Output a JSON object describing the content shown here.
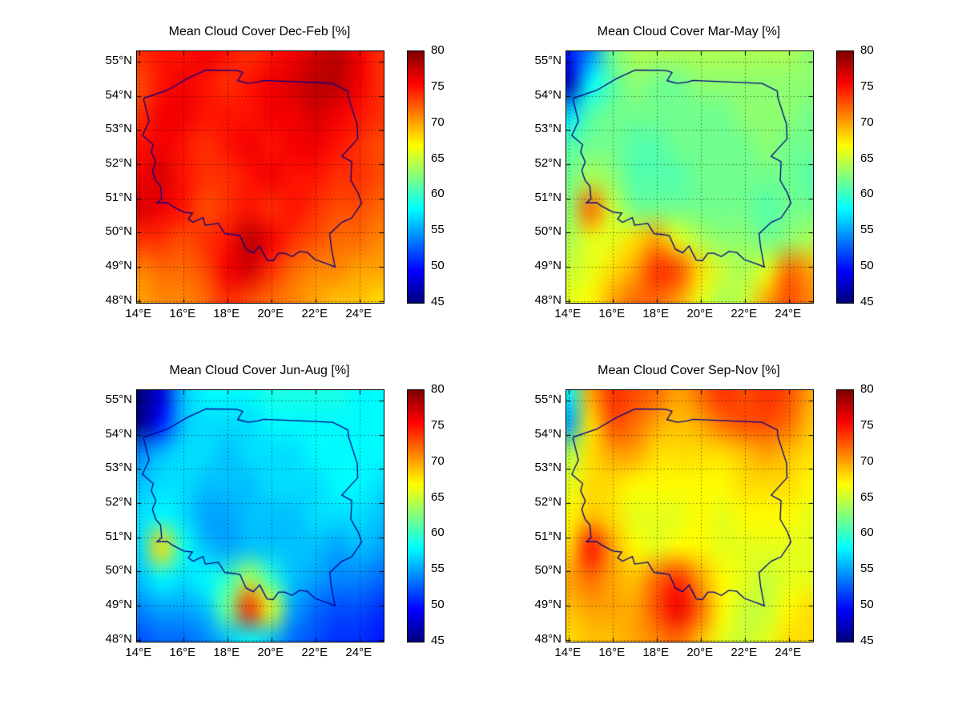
{
  "figure": {
    "background": "#ffffff",
    "description": "Seasonal mean cloud cover maps over Poland, four panels with jet colorbars"
  },
  "axes": {
    "lon_range": [
      13.9,
      25.1
    ],
    "lat_range": [
      47.95,
      55.3
    ],
    "lon_ticks": [
      14,
      16,
      18,
      20,
      22,
      24
    ],
    "lon_tick_labels": [
      "14°E",
      "16°E",
      "18°E",
      "20°E",
      "22°E",
      "24°E"
    ],
    "lat_ticks": [
      55,
      54,
      53,
      52,
      51,
      50,
      49,
      48
    ],
    "lat_tick_labels": [
      "55°N",
      "54°N",
      "53°N",
      "52°N",
      "51°N",
      "50°N",
      "49°N",
      "48°N"
    ],
    "grid_color": "#000000",
    "grid_style": "dotted"
  },
  "colorbar": {
    "min": 45,
    "max": 80,
    "ticks": [
      45,
      50,
      55,
      60,
      65,
      70,
      75,
      80
    ],
    "colormap": "jet",
    "units": "%"
  },
  "map": {
    "border_color": "#00008B",
    "region": "Poland",
    "poland_border": [
      [
        14.2,
        53.9
      ],
      [
        14.45,
        53.26
      ],
      [
        14.15,
        52.84
      ],
      [
        14.64,
        52.57
      ],
      [
        14.55,
        52.36
      ],
      [
        14.76,
        52.07
      ],
      [
        14.6,
        51.82
      ],
      [
        14.75,
        51.53
      ],
      [
        14.97,
        51.36
      ],
      [
        15.02,
        50.99
      ],
      [
        14.81,
        50.87
      ],
      [
        15.28,
        50.88
      ],
      [
        15.49,
        50.78
      ],
      [
        16.02,
        50.6
      ],
      [
        16.42,
        50.57
      ],
      [
        16.23,
        50.4
      ],
      [
        16.45,
        50.3
      ],
      [
        16.9,
        50.44
      ],
      [
        17.0,
        50.22
      ],
      [
        17.6,
        50.27
      ],
      [
        17.88,
        49.97
      ],
      [
        18.35,
        49.94
      ],
      [
        18.58,
        49.91
      ],
      [
        18.85,
        49.52
      ],
      [
        19.18,
        49.41
      ],
      [
        19.47,
        49.61
      ],
      [
        19.63,
        49.41
      ],
      [
        19.8,
        49.2
      ],
      [
        20.08,
        49.18
      ],
      [
        20.33,
        49.4
      ],
      [
        20.61,
        49.4
      ],
      [
        20.94,
        49.3
      ],
      [
        21.28,
        49.45
      ],
      [
        21.64,
        49.42
      ],
      [
        21.97,
        49.22
      ],
      [
        22.56,
        49.08
      ],
      [
        22.89,
        49.0
      ],
      [
        22.72,
        49.58
      ],
      [
        22.65,
        49.97
      ],
      [
        23.2,
        50.3
      ],
      [
        23.65,
        50.43
      ],
      [
        24.1,
        50.86
      ],
      [
        23.95,
        51.14
      ],
      [
        23.61,
        51.53
      ],
      [
        23.65,
        52.07
      ],
      [
        23.2,
        52.23
      ],
      [
        23.92,
        52.74
      ],
      [
        23.9,
        53.16
      ],
      [
        23.5,
        53.95
      ],
      [
        23.48,
        54.14
      ],
      [
        22.79,
        54.36
      ],
      [
        19.65,
        54.45
      ],
      [
        19.4,
        54.4
      ],
      [
        18.95,
        54.36
      ],
      [
        18.47,
        54.44
      ],
      [
        18.7,
        54.68
      ],
      [
        18.4,
        54.74
      ],
      [
        17.03,
        54.75
      ],
      [
        16.18,
        54.5
      ],
      [
        15.28,
        54.16
      ],
      [
        14.22,
        53.93
      ],
      [
        14.2,
        53.9
      ]
    ]
  },
  "chart_data": [
    {
      "type": "heatmap",
      "season": "Dec-Feb",
      "title": "Mean Cloud Cover Dec-Feb [%]",
      "units": "%",
      "grid_lons": [
        14,
        15,
        16,
        17,
        18,
        19,
        20,
        21,
        22,
        23,
        24,
        25
      ],
      "grid_lats": [
        55.25,
        54.34,
        53.44,
        52.53,
        51.63,
        50.72,
        49.81,
        48.91,
        48.0
      ],
      "values": [
        [
          74,
          75,
          75,
          76,
          75,
          74,
          75,
          76,
          77,
          78,
          76,
          74
        ],
        [
          73,
          75,
          76,
          75,
          74,
          75,
          76,
          77,
          78,
          78,
          76,
          74
        ],
        [
          74,
          76,
          76,
          75,
          75,
          75,
          76,
          76,
          77,
          76,
          75,
          74
        ],
        [
          75,
          76,
          75,
          74,
          75,
          76,
          75,
          76,
          76,
          75,
          74,
          73
        ],
        [
          76,
          77,
          75,
          74,
          74,
          75,
          76,
          75,
          75,
          74,
          74,
          73
        ],
        [
          77,
          76,
          75,
          73,
          74,
          75,
          74,
          75,
          74,
          73,
          73,
          72
        ],
        [
          74,
          74,
          73,
          74,
          75,
          78,
          76,
          74,
          73,
          72,
          72,
          71
        ],
        [
          71,
          72,
          72,
          73,
          76,
          77,
          74,
          72,
          71,
          71,
          70,
          70
        ],
        [
          70,
          71,
          71,
          72,
          74,
          73,
          72,
          71,
          70,
          69,
          69,
          68
        ]
      ]
    },
    {
      "type": "heatmap",
      "season": "Mar-May",
      "title": "Mean Cloud Cover Mar-May [%]",
      "units": "%",
      "grid_lons": [
        14,
        15,
        16,
        17,
        18,
        19,
        20,
        21,
        22,
        23,
        24,
        25
      ],
      "grid_lats": [
        55.25,
        54.34,
        53.44,
        52.53,
        51.63,
        50.72,
        49.81,
        48.91,
        48.0
      ],
      "values": [
        [
          50,
          54,
          62,
          64,
          64,
          64,
          64,
          64,
          64,
          64,
          64,
          63
        ],
        [
          47,
          58,
          61,
          63,
          62,
          62,
          63,
          63,
          63,
          63,
          63,
          63
        ],
        [
          57,
          61,
          62,
          62,
          62,
          62,
          62,
          62,
          63,
          63,
          63,
          62
        ],
        [
          61,
          62,
          62,
          61,
          61,
          62,
          62,
          62,
          62,
          63,
          62,
          62
        ],
        [
          62,
          64,
          63,
          61,
          61,
          61,
          62,
          62,
          62,
          62,
          62,
          61
        ],
        [
          63,
          72,
          65,
          62,
          62,
          62,
          62,
          62,
          62,
          61,
          62,
          62
        ],
        [
          64,
          66,
          66,
          68,
          70,
          66,
          64,
          63,
          63,
          62,
          63,
          64
        ],
        [
          65,
          66,
          68,
          70,
          74,
          73,
          68,
          65,
          64,
          66,
          72,
          70
        ],
        [
          66,
          67,
          70,
          72,
          72,
          70,
          66,
          64,
          65,
          70,
          73,
          71
        ]
      ]
    },
    {
      "type": "heatmap",
      "season": "Jun-Aug",
      "title": "Mean Cloud Cover Jun-Aug [%]",
      "units": "%",
      "grid_lons": [
        14,
        15,
        16,
        17,
        18,
        19,
        20,
        21,
        22,
        23,
        24,
        25
      ],
      "grid_lats": [
        55.25,
        54.34,
        53.44,
        52.53,
        51.63,
        50.72,
        49.81,
        48.91,
        48.0
      ],
      "values": [
        [
          45,
          48,
          56,
          58,
          58,
          58,
          59,
          59,
          59,
          59,
          58,
          58
        ],
        [
          44,
          50,
          56,
          57,
          57,
          57,
          58,
          58,
          58,
          58,
          58,
          58
        ],
        [
          54,
          56,
          57,
          57,
          56,
          57,
          57,
          57,
          58,
          58,
          58,
          58
        ],
        [
          56,
          57,
          57,
          56,
          56,
          56,
          57,
          57,
          57,
          58,
          58,
          57
        ],
        [
          57,
          58,
          57,
          55,
          55,
          56,
          56,
          56,
          57,
          57,
          57,
          56
        ],
        [
          57,
          68,
          59,
          56,
          55,
          56,
          56,
          56,
          56,
          55,
          56,
          55
        ],
        [
          56,
          58,
          57,
          58,
          60,
          64,
          60,
          56,
          55,
          54,
          54,
          53
        ],
        [
          54,
          55,
          55,
          56,
          62,
          74,
          66,
          55,
          53,
          52,
          52,
          51
        ],
        [
          52,
          53,
          53,
          54,
          56,
          58,
          56,
          53,
          52,
          51,
          51,
          50
        ]
      ]
    },
    {
      "type": "heatmap",
      "season": "Sep-Nov",
      "title": "Mean Cloud Cover Sep-Nov [%]",
      "units": "%",
      "grid_lons": [
        14,
        15,
        16,
        17,
        18,
        19,
        20,
        21,
        22,
        23,
        24,
        25
      ],
      "grid_lats": [
        55.25,
        54.34,
        53.44,
        52.53,
        51.63,
        50.72,
        49.81,
        48.91,
        48.0
      ],
      "values": [
        [
          58,
          70,
          74,
          73,
          72,
          70,
          72,
          74,
          73,
          74,
          73,
          70
        ],
        [
          55,
          68,
          73,
          72,
          70,
          69,
          70,
          72,
          73,
          73,
          72,
          69
        ],
        [
          64,
          68,
          70,
          70,
          68,
          68,
          68,
          68,
          69,
          70,
          69,
          68
        ],
        [
          66,
          68,
          68,
          67,
          67,
          67,
          67,
          67,
          68,
          68,
          68,
          67
        ],
        [
          67,
          69,
          68,
          66,
          66,
          66,
          67,
          66,
          67,
          67,
          67,
          66
        ],
        [
          68,
          75,
          70,
          67,
          66,
          67,
          67,
          66,
          66,
          66,
          66,
          66
        ],
        [
          70,
          72,
          70,
          69,
          72,
          74,
          70,
          67,
          66,
          65,
          66,
          66
        ],
        [
          69,
          70,
          70,
          70,
          73,
          76,
          72,
          67,
          65,
          65,
          67,
          68
        ],
        [
          68,
          69,
          69,
          70,
          71,
          72,
          69,
          66,
          65,
          66,
          68,
          68
        ]
      ]
    }
  ]
}
